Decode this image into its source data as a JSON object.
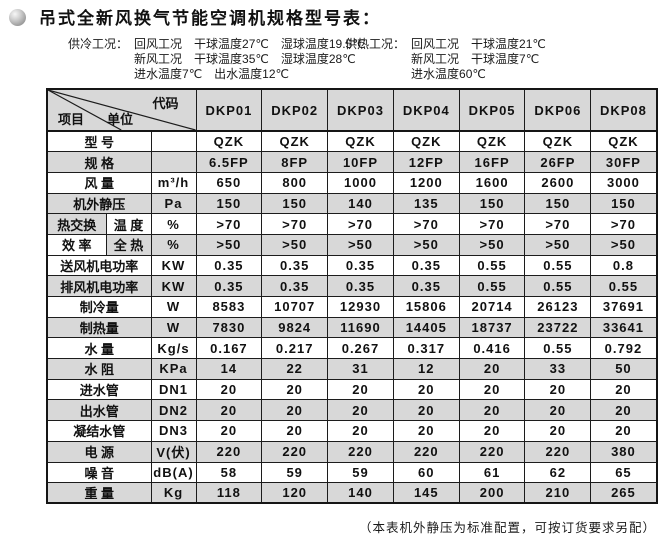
{
  "title": "吊式全新风换气节能空调机规格型号表：",
  "conditions": {
    "cooling": {
      "label": "供冷工况：",
      "lines": [
        "回风工况　干球温度27℃　湿球温度19.5℃",
        "新风工况　干球温度35℃　湿球温度28℃",
        "进水温度7℃　出水温度12℃"
      ]
    },
    "heating": {
      "label": "供热工况：",
      "lines": [
        "回风工况　干球温度21℃",
        "新风工况　干球温度7℃",
        "进水温度60℃"
      ]
    }
  },
  "table": {
    "corner": {
      "code": "代码",
      "item": "项目",
      "unit": "单位"
    },
    "model_columns": [
      "DKP01",
      "DKP02",
      "DKP03",
      "DKP04",
      "DKP05",
      "DKP06",
      "DKP08"
    ],
    "rows": [
      {
        "label": "型 号",
        "unit": "",
        "values": [
          "QZK",
          "QZK",
          "QZK",
          "QZK",
          "QZK",
          "QZK",
          "QZK"
        ],
        "shaded": false
      },
      {
        "label": "规 格",
        "unit": "",
        "values": [
          "6.5FP",
          "8FP",
          "10FP",
          "12FP",
          "16FP",
          "26FP",
          "30FP"
        ],
        "shaded": true
      },
      {
        "label": "风 量",
        "unit": "m³/h",
        "values": [
          "650",
          "800",
          "1000",
          "1200",
          "1600",
          "2600",
          "3000"
        ],
        "shaded": false
      },
      {
        "label": "机外静压",
        "unit": "Pa",
        "values": [
          "150",
          "150",
          "140",
          "135",
          "150",
          "150",
          "150"
        ],
        "shaded": true
      },
      {
        "label": "热交换",
        "label2": "温 度",
        "unit": "%",
        "values": [
          ">70",
          ">70",
          ">70",
          ">70",
          ">70",
          ">70",
          ">70"
        ],
        "shaded": false,
        "label_shaded": true
      },
      {
        "label": "效 率",
        "label2": "全 热",
        "unit": "%",
        "values": [
          ">50",
          ">50",
          ">50",
          ">50",
          ">50",
          ">50",
          ">50"
        ],
        "shaded": true,
        "label_shaded": false
      },
      {
        "label": "送风机电功率",
        "unit": "KW",
        "values": [
          "0.35",
          "0.35",
          "0.35",
          "0.35",
          "0.55",
          "0.55",
          "0.8"
        ],
        "shaded": false
      },
      {
        "label": "排风机电功率",
        "unit": "KW",
        "values": [
          "0.35",
          "0.35",
          "0.35",
          "0.35",
          "0.55",
          "0.55",
          "0.55"
        ],
        "shaded": true
      },
      {
        "label": "制冷量",
        "unit": "W",
        "values": [
          "8583",
          "10707",
          "12930",
          "15806",
          "20714",
          "26123",
          "37691"
        ],
        "shaded": false
      },
      {
        "label": "制热量",
        "unit": "W",
        "values": [
          "7830",
          "9824",
          "11690",
          "14405",
          "18737",
          "23722",
          "33641"
        ],
        "shaded": true
      },
      {
        "label": "水 量",
        "unit": "Kg/s",
        "values": [
          "0.167",
          "0.217",
          "0.267",
          "0.317",
          "0.416",
          "0.55",
          "0.792"
        ],
        "shaded": false
      },
      {
        "label": "水 阻",
        "unit": "KPa",
        "values": [
          "14",
          "22",
          "31",
          "12",
          "20",
          "33",
          "50"
        ],
        "shaded": true
      },
      {
        "label": "进水管",
        "unit": "DN1",
        "values": [
          "20",
          "20",
          "20",
          "20",
          "20",
          "20",
          "20"
        ],
        "shaded": false
      },
      {
        "label": "出水管",
        "unit": "DN2",
        "values": [
          "20",
          "20",
          "20",
          "20",
          "20",
          "20",
          "20"
        ],
        "shaded": true
      },
      {
        "label": "凝结水管",
        "unit": "DN3",
        "values": [
          "20",
          "20",
          "20",
          "20",
          "20",
          "20",
          "20"
        ],
        "shaded": false
      },
      {
        "label": "电 源",
        "unit": "V(伏)",
        "values": [
          "220",
          "220",
          "220",
          "220",
          "220",
          "220",
          "380"
        ],
        "shaded": true
      },
      {
        "label": "噪 音",
        "unit": "dB(A)",
        "values": [
          "58",
          "59",
          "59",
          "60",
          "61",
          "62",
          "65"
        ],
        "shaded": false
      },
      {
        "label": "重 量",
        "unit": "Kg",
        "values": [
          "118",
          "120",
          "140",
          "145",
          "200",
          "210",
          "265"
        ],
        "shaded": true
      }
    ]
  },
  "footnote": "（本表机外静压为标准配置，可按订货要求另配）",
  "colors": {
    "row_shade": "#d8d8d8",
    "border": "#1c1c1c",
    "header_shade": "#d8d8d8"
  }
}
